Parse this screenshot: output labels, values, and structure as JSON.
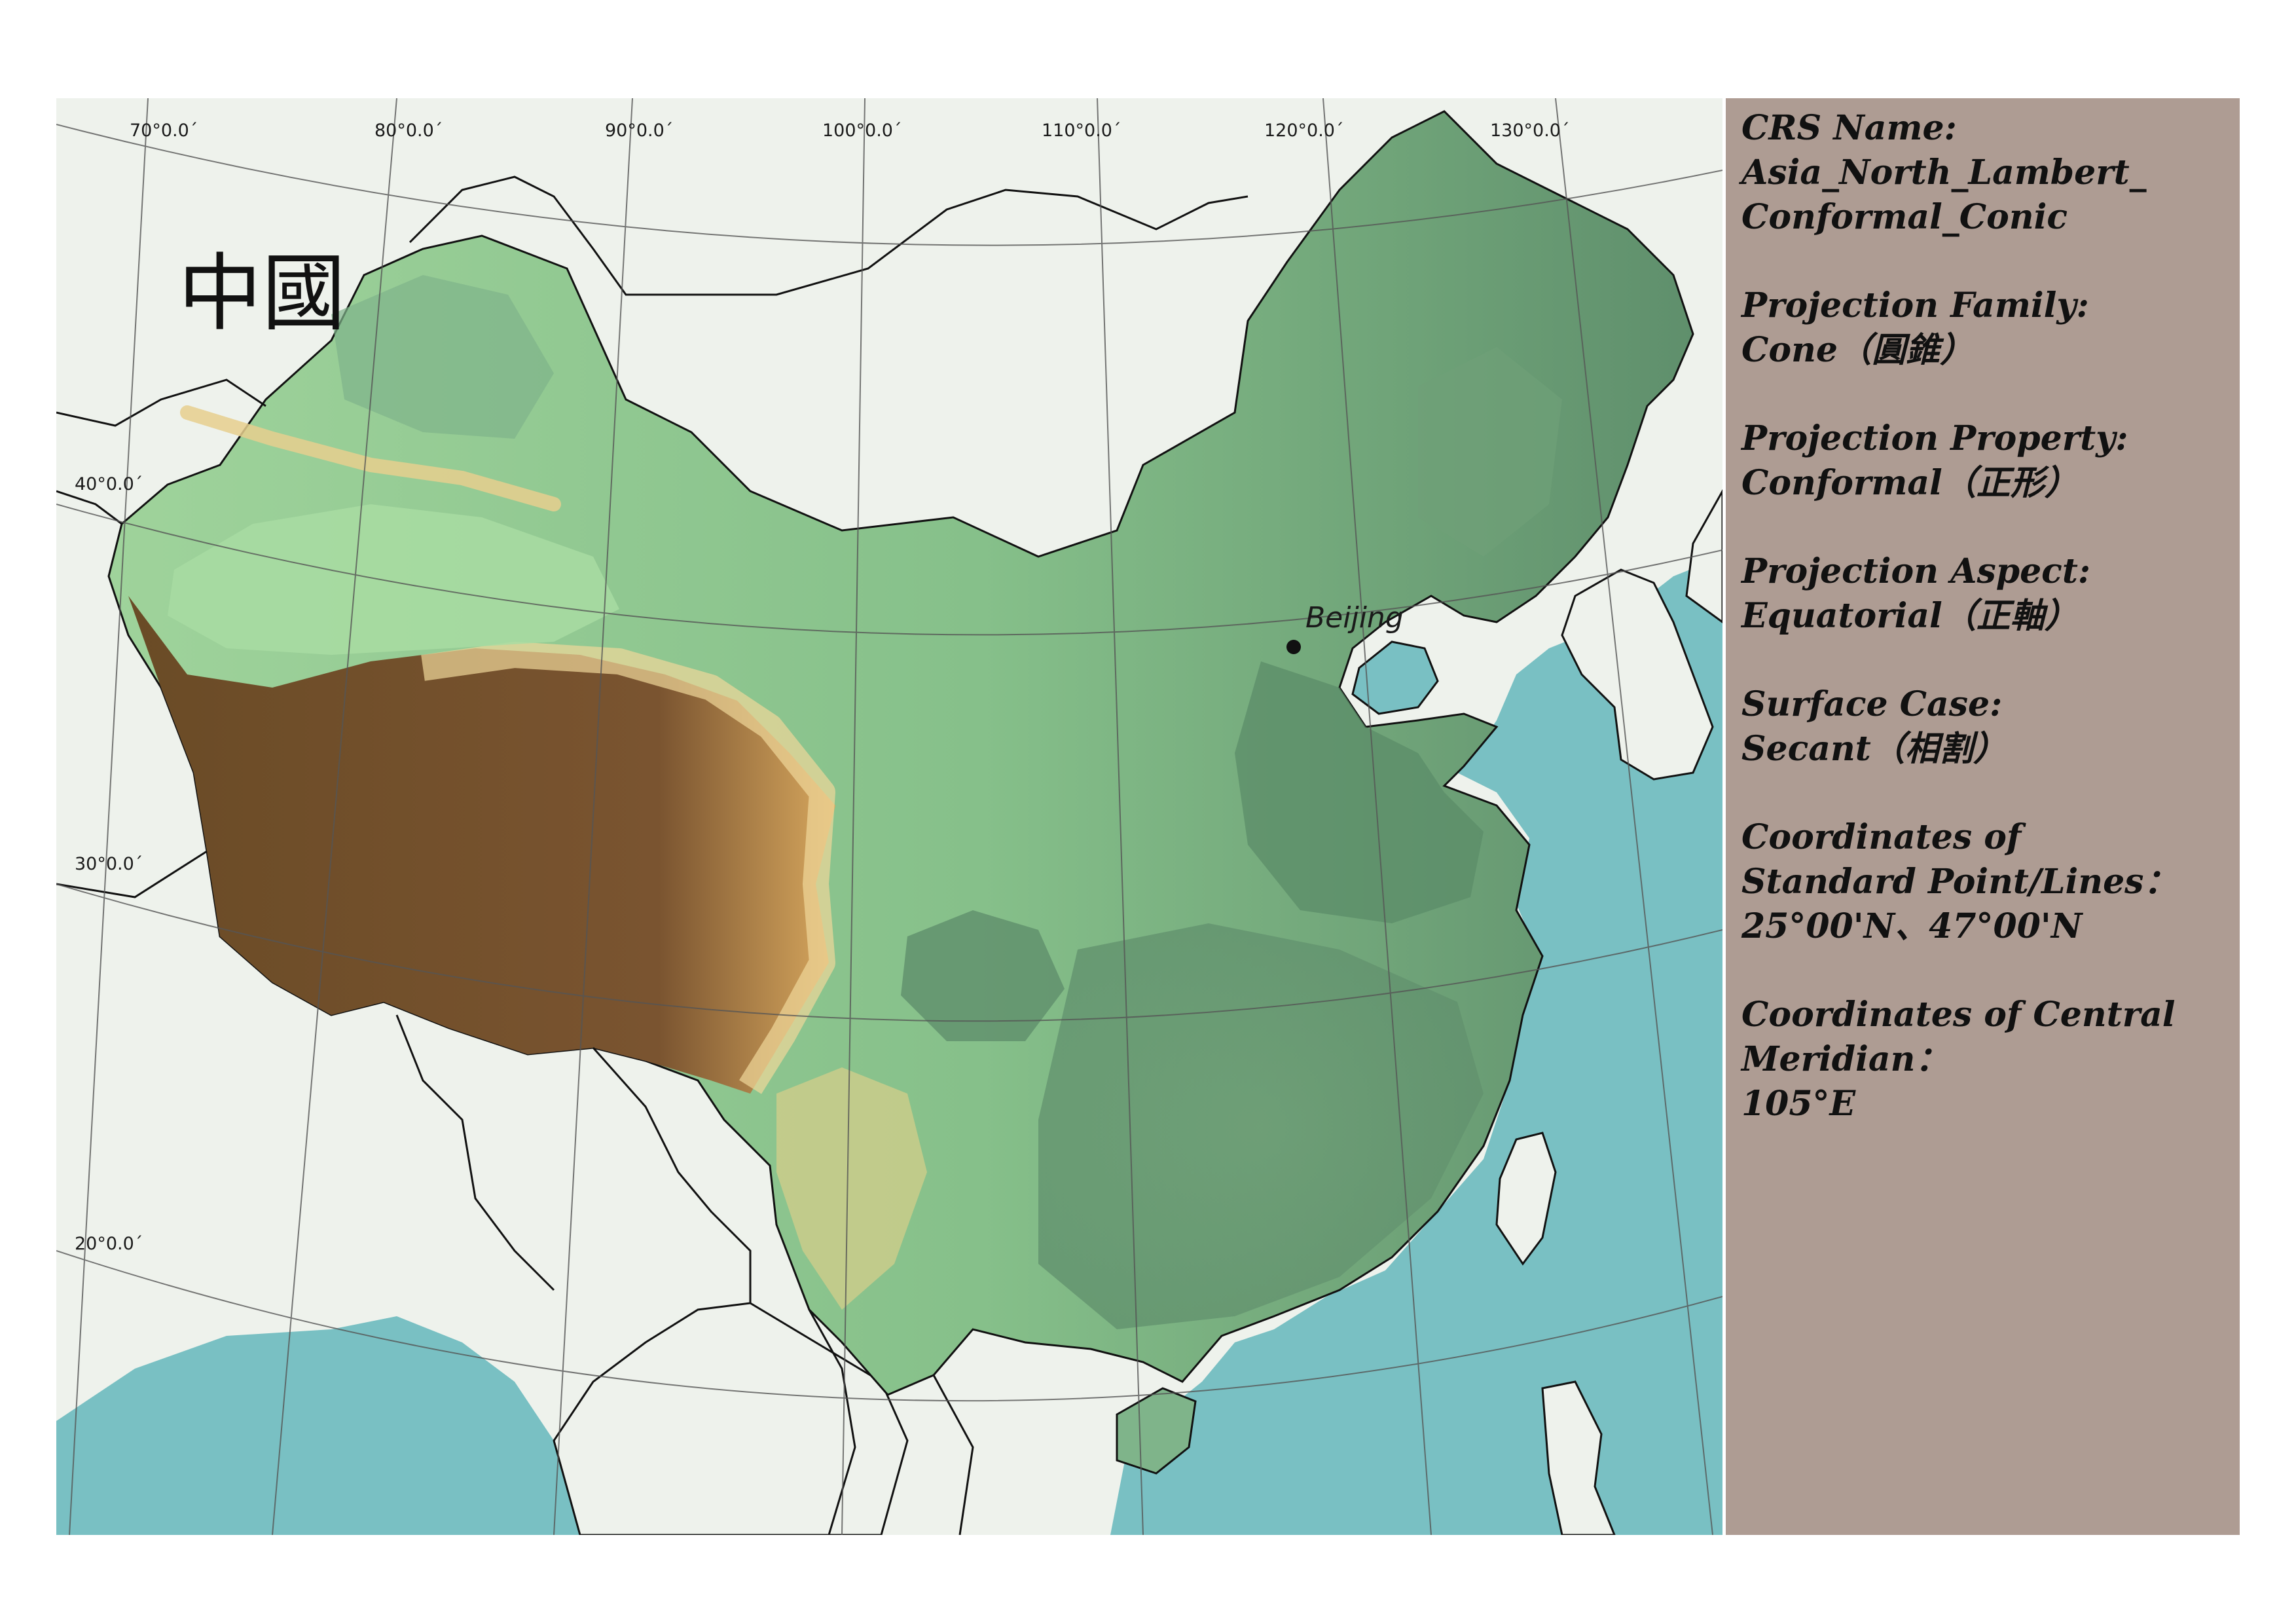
{
  "map": {
    "title": "中國",
    "city": {
      "name": "Beijing"
    },
    "longitude_labels": [
      "70°0.0´",
      "80°0.0´",
      "90°0.0´",
      "100°0.0´",
      "110°0.0´",
      "120°0.0´",
      "130°0.0´"
    ],
    "latitude_labels": [
      "40°0.0´",
      "30°0.0´",
      "20°0.0´"
    ],
    "colors": {
      "sea": "#79c0c3",
      "land_other": "#eef2ec",
      "lowland": "#5f8f6c",
      "midland": "#9fd39b",
      "upland": "#e9d79a",
      "plateau": "#6a4b26",
      "border": "#111111",
      "graticule": "#555555"
    }
  },
  "info": {
    "crs_label": "CRS Name:",
    "crs_value_1": "Asia_North_Lambert_",
    "crs_value_2": "Conformal_Conic",
    "family_label": "Projection Family:",
    "family_value": "Cone（圓錐）",
    "property_label": "Projection Property:",
    "property_value": "Conformal（正形）",
    "aspect_label": "Projection Aspect:",
    "aspect_value": "Equatorial（正軸）",
    "surface_label": "Surface Case:",
    "surface_value": "Secant（相割）",
    "std_label_1": "Coordinates of",
    "std_label_2": "Standard Point/Lines：",
    "std_value": "25°00'N、47°00'N",
    "meridian_label_1": "Coordinates of Central",
    "meridian_label_2": "Meridian：",
    "meridian_value": "105°E"
  }
}
